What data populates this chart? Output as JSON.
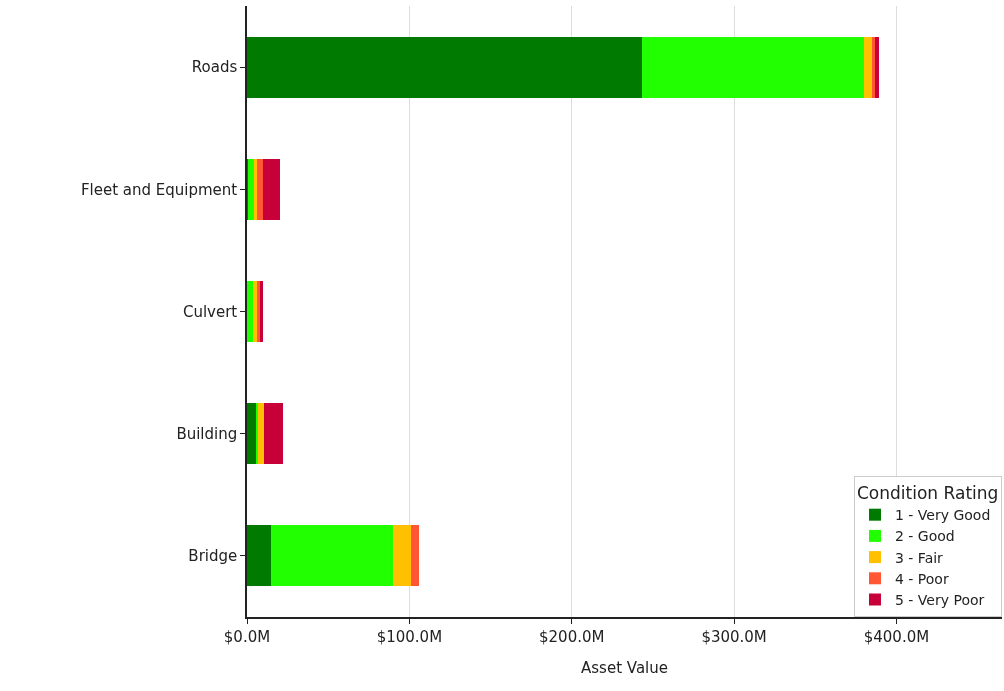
{
  "chart_data": {
    "type": "bar",
    "orientation": "horizontal",
    "stacked": true,
    "xlabel": "Asset Value",
    "legend_title": "Condition Rating",
    "legend": "bottom right",
    "grid": "x",
    "categories": [
      "Roads",
      "Fleet and Equipment",
      "Culvert",
      "Building",
      "Bridge"
    ],
    "xlim": [
      0,
      465
    ],
    "xticks": [
      {
        "value": 0,
        "label": "$0.0M"
      },
      {
        "value": 100,
        "label": "$100.0M"
      },
      {
        "value": 200,
        "label": "$200.0M"
      },
      {
        "value": 300,
        "label": "$300.0M"
      },
      {
        "value": 400,
        "label": "$400.0M"
      }
    ],
    "series": [
      {
        "name": "1 - Very Good",
        "color": "#007a00",
        "values": [
          243,
          0.5,
          0,
          6.1,
          14.6
        ]
      },
      {
        "name": "2 - Good",
        "color": "#22ff00",
        "values": [
          137,
          3.6,
          4,
          0.6,
          75.3
        ]
      },
      {
        "name": "3 - Fair",
        "color": "#ffc000",
        "values": [
          5,
          2,
          2,
          4,
          11.2
        ]
      },
      {
        "name": "4 - Poor",
        "color": "#ff5733",
        "values": [
          1.5,
          3.7,
          2,
          0,
          4.7
        ]
      },
      {
        "name": "5 - Very Poor",
        "color": "#c70039",
        "values": [
          3,
          10.5,
          1.6,
          11.2,
          0
        ]
      }
    ]
  }
}
